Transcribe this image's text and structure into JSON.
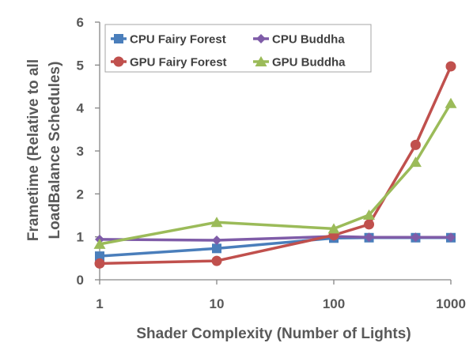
{
  "chart_data": {
    "type": "line",
    "x_scale": "log",
    "x": [
      1,
      10,
      100,
      200,
      500,
      1000
    ],
    "x_ticks": [
      1,
      10,
      100,
      1000
    ],
    "x_tick_labels": [
      "1",
      "10",
      "100",
      "1000"
    ],
    "xlabel": "Shader Complexity (Number of Lights)",
    "ylabel_lines": [
      "Frametime (Relative to all",
      "LoadBalance Schedules)"
    ],
    "ylim": [
      0,
      6
    ],
    "y_ticks": [
      0,
      1,
      2,
      3,
      4,
      5,
      6
    ],
    "y_tick_labels": [
      "0",
      "1",
      "2",
      "3",
      "4",
      "5",
      "6"
    ],
    "grid": false,
    "legend_position": "top-left",
    "series": [
      {
        "name": "CPU Fairy Forest",
        "color": "#4a7ebb",
        "marker": "square",
        "values": [
          0.55,
          0.73,
          0.97,
          0.98,
          0.98,
          0.98
        ]
      },
      {
        "name": "CPU Buddha",
        "color": "#7f5ca8",
        "marker": "diamond",
        "values": [
          0.94,
          0.92,
          1.01,
          0.99,
          0.99,
          0.99
        ]
      },
      {
        "name": "GPU Fairy Forest",
        "color": "#c0504d",
        "marker": "circle",
        "values": [
          0.38,
          0.44,
          1.04,
          1.29,
          3.14,
          4.97
        ]
      },
      {
        "name": "GPU Buddha",
        "color": "#9bbb59",
        "marker": "triangle",
        "values": [
          0.83,
          1.34,
          1.19,
          1.51,
          2.74,
          4.11
        ]
      }
    ]
  }
}
